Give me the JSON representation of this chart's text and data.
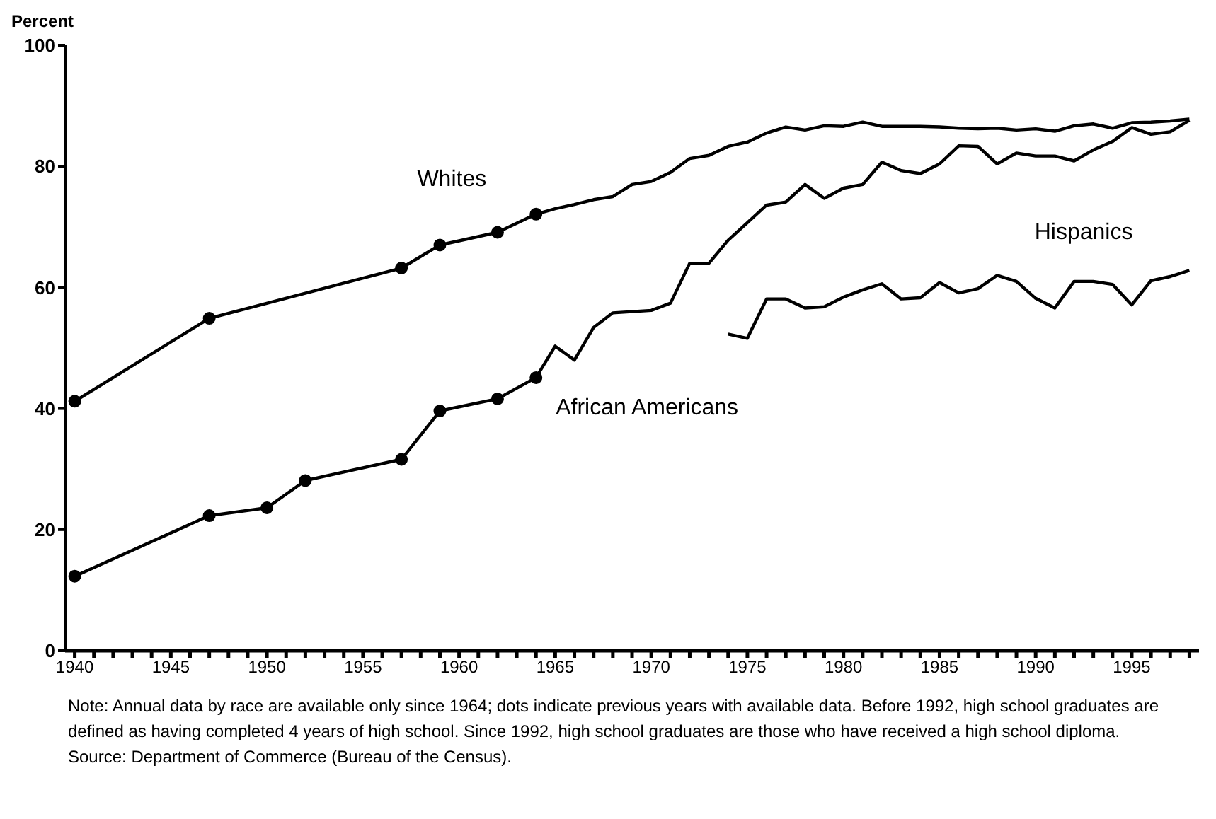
{
  "chart_data": {
    "type": "line",
    "ylabel": "Percent",
    "xlim": [
      1939.5,
      1998.5
    ],
    "xticks": [
      1940,
      {
        "value": 1941,
        "label": null
      },
      {
        "value": 1942,
        "label": null
      },
      {
        "value": 1943,
        "label": null
      },
      {
        "value": 1944,
        "label": null
      },
      1945,
      {
        "value": 1946,
        "label": null
      },
      {
        "value": 1947,
        "label": null
      },
      {
        "value": 1948,
        "label": null
      },
      {
        "value": 1949,
        "label": null
      },
      1950,
      {
        "value": 1951,
        "label": null
      },
      {
        "value": 1952,
        "label": null
      },
      {
        "value": 1953,
        "label": null
      },
      {
        "value": 1954,
        "label": null
      },
      1955,
      {
        "value": 1956,
        "label": null
      },
      {
        "value": 1957,
        "label": null
      },
      {
        "value": 1958,
        "label": null
      },
      {
        "value": 1959,
        "label": null
      },
      1960,
      {
        "value": 1961,
        "label": null
      },
      {
        "value": 1962,
        "label": null
      },
      {
        "value": 1963,
        "label": null
      },
      {
        "value": 1964,
        "label": null
      },
      1965,
      {
        "value": 1966,
        "label": null
      },
      {
        "value": 1967,
        "label": null
      },
      {
        "value": 1968,
        "label": null
      },
      {
        "value": 1969,
        "label": null
      },
      1970,
      {
        "value": 1971,
        "label": null
      },
      {
        "value": 1972,
        "label": null
      },
      {
        "value": 1973,
        "label": null
      },
      {
        "value": 1974,
        "label": null
      },
      1975,
      {
        "value": 1976,
        "label": null
      },
      {
        "value": 1977,
        "label": null
      },
      {
        "value": 1978,
        "label": null
      },
      {
        "value": 1979,
        "label": null
      },
      1980,
      {
        "value": 1981,
        "label": null
      },
      {
        "value": 1982,
        "label": null
      },
      {
        "value": 1983,
        "label": null
      },
      {
        "value": 1984,
        "label": null
      },
      1985,
      {
        "value": 1986,
        "label": null
      },
      {
        "value": 1987,
        "label": null
      },
      {
        "value": 1988,
        "label": null
      },
      {
        "value": 1989,
        "label": null
      },
      1990,
      {
        "value": 1991,
        "label": null
      },
      {
        "value": 1992,
        "label": null
      },
      {
        "value": 1993,
        "label": null
      },
      {
        "value": 1994,
        "label": null
      },
      1995,
      {
        "value": 1996,
        "label": null
      },
      {
        "value": 1997,
        "label": null
      },
      {
        "value": 1998,
        "label": null
      }
    ],
    "ylim": [
      0,
      100
    ],
    "yticks": [
      0,
      20,
      40,
      60,
      80,
      100
    ],
    "grid": false,
    "legend": false,
    "line_style": "solid",
    "series": [
      {
        "name": "Whites",
        "color": "#000000",
        "marker": "circle",
        "x": [
          1940,
          1947,
          1957,
          1959,
          1962,
          1964
        ],
        "values": [
          41.2,
          54.9,
          63.2,
          67.0,
          69.1,
          72.1
        ]
      },
      {
        "color": "#000000",
        "marker": "none",
        "x": [
          1964,
          1965,
          1966,
          1967,
          1968,
          1969,
          1970,
          1971,
          1972,
          1973,
          1974,
          1975,
          1976,
          1977,
          1978,
          1979,
          1980,
          1981,
          1982,
          1983,
          1984,
          1985,
          1986,
          1987,
          1988,
          1989,
          1990,
          1991,
          1992,
          1993,
          1994,
          1995,
          1996,
          1997,
          1998
        ],
        "values": [
          72.1,
          73.0,
          73.7,
          74.5,
          75.0,
          77.0,
          77.5,
          79.0,
          81.3,
          81.8,
          83.3,
          84.0,
          85.5,
          86.5,
          86.0,
          86.7,
          86.6,
          87.3,
          86.6,
          86.6,
          86.6,
          86.5,
          86.3,
          86.2,
          86.3,
          86.0,
          86.2,
          85.8,
          86.7,
          87.0,
          86.3,
          87.2,
          87.3,
          87.5,
          87.8
        ]
      },
      {
        "name": "African Americans",
        "color": "#000000",
        "marker": "circle",
        "x": [
          1940,
          1947,
          1950,
          1952,
          1957,
          1959,
          1962,
          1964
        ],
        "values": [
          12.3,
          22.3,
          23.6,
          28.1,
          31.6,
          39.6,
          41.6,
          45.1
        ]
      },
      {
        "color": "#000000",
        "marker": "none",
        "x": [
          1964,
          1965,
          1966,
          1967,
          1968,
          1969,
          1970,
          1971,
          1972,
          1973,
          1974,
          1975,
          1976,
          1977,
          1978,
          1979,
          1980,
          1981,
          1982,
          1983,
          1984,
          1985,
          1986,
          1987,
          1988,
          1989,
          1990,
          1991,
          1992,
          1993,
          1994,
          1995,
          1996,
          1997,
          1998
        ],
        "values": [
          45.1,
          50.3,
          48.0,
          53.4,
          55.8,
          56.0,
          56.2,
          57.4,
          64.0,
          64.0,
          67.8,
          70.7,
          73.6,
          74.1,
          77.0,
          74.7,
          76.4,
          77.0,
          80.7,
          79.3,
          78.8,
          80.4,
          83.4,
          83.3,
          80.4,
          82.2,
          81.7,
          81.7,
          80.9,
          82.7,
          84.1,
          86.4,
          85.3,
          85.7,
          87.6
        ]
      },
      {
        "name": "Hispanics",
        "color": "#000000",
        "marker": "none",
        "x": [
          1974,
          1975,
          1976,
          1977,
          1978,
          1979,
          1980,
          1981,
          1982,
          1983,
          1984,
          1985,
          1986,
          1987,
          1988,
          1989,
          1990,
          1991,
          1992,
          1993,
          1994,
          1995,
          1996,
          1997,
          1998
        ],
        "values": [
          52.3,
          51.6,
          58.1,
          58.1,
          56.6,
          56.8,
          58.4,
          59.6,
          60.6,
          58.1,
          58.3,
          60.8,
          59.1,
          59.8,
          62.0,
          61.0,
          58.2,
          56.6,
          61.0,
          61.0,
          60.5,
          57.1,
          61.1,
          61.8,
          62.8
        ]
      }
    ],
    "annotations": [
      "Note: Annual data by race are available only since 1964; dots indicate previous years with available data. Before 1992, high school graduates are defined as having completed 4 years of high school.  Since 1992, high school graduates are those who have received a high school diploma.",
      "Source: Department of Commerce (Bureau of the Census)."
    ]
  }
}
